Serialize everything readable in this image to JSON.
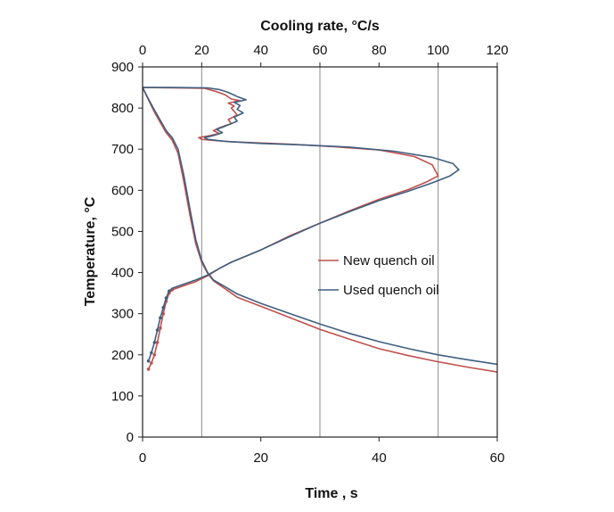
{
  "chart_data": {
    "type": "line",
    "title": "",
    "xlabel": "Time , s",
    "ylabel": "Temperature, °C",
    "x2label": "Cooling rate, °C/s",
    "xlim": [
      0,
      60
    ],
    "x2lim": [
      0,
      120
    ],
    "ylim": [
      0,
      900
    ],
    "xticks": [
      0,
      20,
      40,
      60
    ],
    "x2ticks": [
      0,
      20,
      40,
      60,
      80,
      100,
      120
    ],
    "yticks": [
      0,
      100,
      200,
      300,
      400,
      500,
      600,
      700,
      800,
      900
    ],
    "grid": "vertical lines at bottom-axis ticks 10, 30, 50",
    "legend_position": "center-right",
    "series": [
      {
        "name": "New quench oil",
        "color": "#c0504d",
        "cooling_curve": {
          "axis": "Time , s",
          "points": [
            [
              0,
              850
            ],
            [
              1,
              820
            ],
            [
              2,
              790
            ],
            [
              3,
              765
            ],
            [
              4,
              740
            ],
            [
              5,
              722
            ],
            [
              6,
              690
            ],
            [
              7,
              620
            ],
            [
              8,
              540
            ],
            [
              9,
              470
            ],
            [
              10,
              425
            ],
            [
              11,
              398
            ],
            [
              12,
              380
            ],
            [
              14,
              360
            ],
            [
              16,
              340
            ],
            [
              20,
              318
            ],
            [
              25,
              290
            ],
            [
              30,
              262
            ],
            [
              35,
              238
            ],
            [
              40,
              215
            ],
            [
              45,
              198
            ],
            [
              50,
              183
            ],
            [
              55,
              170
            ],
            [
              60,
              158
            ]
          ]
        },
        "cooling_rate_curve": {
          "axis": "Cooling rate, °C/s",
          "points": [
            [
              2,
              165
            ],
            [
              3,
              180
            ],
            [
              4,
              200
            ],
            [
              5,
              230
            ],
            [
              6,
              265
            ],
            [
              7,
              300
            ],
            [
              8,
              330
            ],
            [
              9,
              350
            ],
            [
              10,
              358
            ],
            [
              14,
              368
            ],
            [
              18,
              378
            ],
            [
              22,
              392
            ],
            [
              26,
              410
            ],
            [
              30,
              425
            ],
            [
              40,
              455
            ],
            [
              50,
              490
            ],
            [
              60,
              520
            ],
            [
              70,
              550
            ],
            [
              80,
              578
            ],
            [
              90,
              602
            ],
            [
              96,
              620
            ],
            [
              100,
              635
            ],
            [
              98,
              662
            ],
            [
              92,
              682
            ],
            [
              80,
              698
            ],
            [
              65,
              706
            ],
            [
              50,
              712
            ],
            [
              40,
              715
            ],
            [
              30,
              718
            ],
            [
              24,
              721
            ],
            [
              20,
              724
            ],
            [
              19,
              728
            ],
            [
              22,
              732
            ],
            [
              26,
              738
            ],
            [
              24,
              745
            ],
            [
              26,
              752
            ],
            [
              30,
              762
            ],
            [
              29,
              772
            ],
            [
              32,
              783
            ],
            [
              31,
              792
            ],
            [
              30,
              800
            ],
            [
              31,
              805
            ],
            [
              29,
              812
            ],
            [
              33,
              818
            ],
            [
              30,
              822
            ],
            [
              28,
              832
            ],
            [
              25,
              840
            ],
            [
              21,
              848
            ],
            [
              10,
              849
            ],
            [
              0,
              850
            ]
          ]
        }
      },
      {
        "name": "Used quench oil",
        "color": "#3f5f7f",
        "cooling_curve": {
          "axis": "Time , s",
          "points": [
            [
              0,
              850
            ],
            [
              1,
              822
            ],
            [
              2,
              795
            ],
            [
              3,
              770
            ],
            [
              4,
              745
            ],
            [
              5,
              728
            ],
            [
              6,
              700
            ],
            [
              7,
              635
            ],
            [
              8,
              555
            ],
            [
              9,
              480
            ],
            [
              10,
              430
            ],
            [
              11,
              400
            ],
            [
              12,
              382
            ],
            [
              14,
              365
            ],
            [
              16,
              348
            ],
            [
              20,
              325
            ],
            [
              25,
              300
            ],
            [
              30,
              275
            ],
            [
              35,
              252
            ],
            [
              40,
              232
            ],
            [
              45,
              215
            ],
            [
              50,
              200
            ],
            [
              55,
              188
            ],
            [
              60,
              177
            ]
          ]
        },
        "cooling_rate_curve": {
          "axis": "Cooling rate, °C/s",
          "points": [
            [
              2,
              185
            ],
            [
              3,
              205
            ],
            [
              4,
              230
            ],
            [
              5,
              260
            ],
            [
              6,
              290
            ],
            [
              7,
              315
            ],
            [
              8,
              338
            ],
            [
              9,
              355
            ],
            [
              10,
              362
            ],
            [
              14,
              372
            ],
            [
              18,
              382
            ],
            [
              22,
              394
            ],
            [
              26,
              410
            ],
            [
              30,
              425
            ],
            [
              40,
              455
            ],
            [
              50,
              488
            ],
            [
              60,
              520
            ],
            [
              70,
              548
            ],
            [
              80,
              575
            ],
            [
              90,
              598
            ],
            [
              98,
              618
            ],
            [
              104,
              635
            ],
            [
              107,
              650
            ],
            [
              105,
              665
            ],
            [
              98,
              680
            ],
            [
              85,
              695
            ],
            [
              70,
              705
            ],
            [
              55,
              710
            ],
            [
              40,
              714
            ],
            [
              28,
              719
            ],
            [
              22,
              724
            ],
            [
              21,
              728
            ],
            [
              24,
              733
            ],
            [
              27,
              740
            ],
            [
              25,
              748
            ],
            [
              28,
              756
            ],
            [
              32,
              768
            ],
            [
              31,
              778
            ],
            [
              34,
              788
            ],
            [
              32,
              797
            ],
            [
              33,
              806
            ],
            [
              31,
              814
            ],
            [
              35,
              820
            ],
            [
              32,
              828
            ],
            [
              29,
              838
            ],
            [
              26,
              845
            ],
            [
              22,
              849
            ],
            [
              10,
              850
            ],
            [
              0,
              850
            ]
          ]
        }
      }
    ]
  }
}
